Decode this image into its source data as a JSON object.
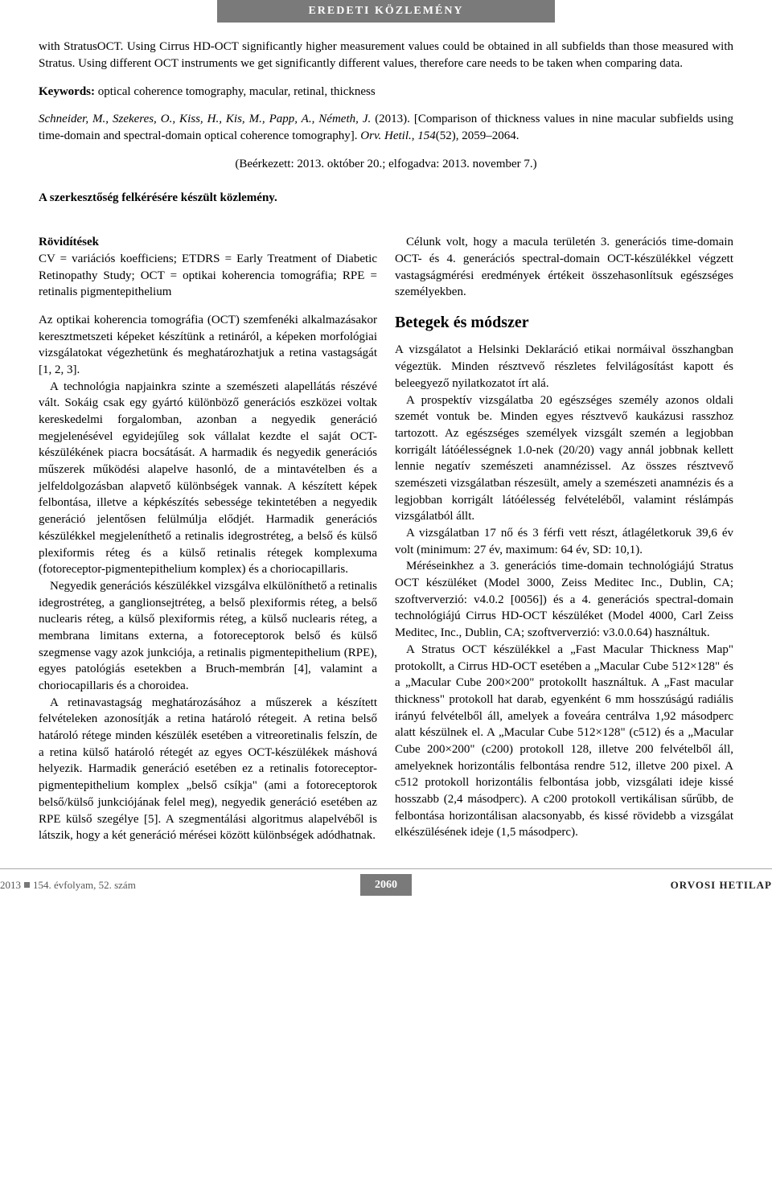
{
  "header": {
    "banner": "EREDETI KÖZLEMÉNY"
  },
  "abstract": {
    "text": "with StratusOCT. Using Cirrus HD-OCT significantly higher measurement values could be obtained in all subfields than those measured with Stratus. Using different OCT instruments we get significantly different values, therefore care needs to be taken when comparing data."
  },
  "keywords": {
    "label": "Keywords:",
    "text": " optical coherence tomography, macular, retinal, thickness"
  },
  "citation": {
    "authors": "Schneider, M., Szekeres, O., Kiss, H., Kis, M., Papp, A., Németh, J.",
    "year": " (2013). ",
    "title": "[Comparison of thickness values in nine macular subfields using time-domain and spectral-domain optical coherence tomography]. ",
    "journal": "Orv. Hetil., 154",
    "pages": "(52), 2059–2064."
  },
  "received": "(Beérkezett: 2013. október 20.; elfogadva: 2013. november 7.)",
  "editorial": "A szerkesztőség felkérésére készült közlemény.",
  "abbrev": {
    "head": "Rövidítések",
    "text": "CV = variációs koefficiens; ETDRS = Early Treatment of Diabetic Retinopathy Study; OCT = optikai koherencia tomográfia; RPE = retinalis pigmentepithelium"
  },
  "body": {
    "p1": "Az optikai koherencia tomográfia (OCT) szemfenéki alkalmazásakor keresztmetszeti képeket készítünk a retináról, a képeken morfológiai vizsgálatokat végezhetünk és meghatározhatjuk a retina vastagságát [1, 2, 3].",
    "p2": "A technológia napjainkra szinte a szemészeti alapellátás részévé vált. Sokáig csak egy gyártó különböző generációs eszközei voltak kereskedelmi forgalomban, azonban a negyedik generáció megjelenésével egyidejűleg sok vállalat kezdte el saját OCT-készülékének piacra bocsátását. A harmadik és negyedik generációs műszerek működési alapelve hasonló, de a mintavételben és a jelfeldolgozásban alapvető különbségek vannak. A készített képek felbontása, illetve a képkészítés sebessége tekintetében a negyedik generáció jelentősen felülmúlja elődjét. Harmadik generációs készülékkel megjeleníthető a retinalis idegrostréteg, a belső és külső plexiformis réteg és a külső retinalis rétegek komplexuma (fotoreceptor-pigmentepithelium komplex) és a choriocapillaris.",
    "p3": "Negyedik generációs készülékkel vizsgálva elkülöníthető a retinalis idegrostréteg, a ganglionsejtréteg, a belső plexiformis réteg, a belső nuclearis réteg, a külső plexiformis réteg, a külső nuclearis réteg, a membrana limitans externa, a fotoreceptorok belső és külső szegmense vagy azok junkciója, a retinalis pigmentepithelium (RPE), egyes patológiás esetekben a Bruch-membrán [4], valamint a choriocapillaris és a choroidea.",
    "p4": "A retinavastagság meghatározásához a műszerek a készített felvételeken azonosítják a retina határoló rétegeit. A retina belső határoló rétege minden készülék esetében a vitreoretinalis felszín, de a retina külső határoló rétegét az egyes OCT-készülékek máshová helyezik. Harmadik generáció esetében ez a retinalis fotoreceptor-pigmentepithelium komplex „belső csíkja\" (ami a fotoreceptorok belső/külső junkciójának felel meg), negyedik generáció esetében az RPE külső szegélye [5]. A szegmentálási algoritmus alapelvéből is látszik, hogy a két generáció mérései között különbségek adódhatnak.",
    "p5": "Célunk volt, hogy a macula területén 3. generációs time-domain OCT- és 4. generációs spectral-domain OCT-készülékkel végzett vastagságmérési eredmények értékeit összehasonlítsuk egészséges személyekben.",
    "section": "Betegek és módszer",
    "p6": "A vizsgálatot a Helsinki Deklaráció etikai normáival összhangban végeztük. Minden résztvevő részletes felvilágosítást kapott és beleegyező nyilatkozatot írt alá.",
    "p7": "A prospektív vizsgálatba 20 egészséges személy azonos oldali szemét vontuk be. Minden egyes résztvevő kaukázusi rasszhoz tartozott. Az egészséges személyek vizsgált szemén a legjobban korrigált látóélességnek 1.0-nek (20/20) vagy annál jobbnak kellett lennie negatív szemészeti anamnézissel. Az összes résztvevő szemészeti vizsgálatban részesült, amely a szemészeti anamnézis és a legjobban korrigált látóélesség felvételéből, valamint réslámpás vizsgálatból állt.",
    "p8": "A vizsgálatban 17 nő és 3 férfi vett részt, átlagéletkoruk 39,6 év volt (minimum: 27 év, maximum: 64 év, SD: 10,1).",
    "p9": "Méréseinkhez a 3. generációs time-domain technológiájú Stratus OCT készüléket (Model 3000, Zeiss Meditec Inc., Dublin, CA; szoftververzió: v4.0.2 [0056]) és a 4. generációs spectral-domain technológiájú Cirrus HD-OCT készüléket (Model 4000, Carl Zeiss Meditec, Inc., Dublin, CA; szoftververzió: v3.0.0.64) használtuk.",
    "p10": "A Stratus OCT készülékkel a „Fast Macular Thickness Map\" protokollt, a Cirrus HD-OCT esetében a „Macular Cube 512×128\" és a „Macular Cube 200×200\" protokollt használtuk. A „Fast macular thickness\" protokoll hat darab, egyenként 6 mm hosszúságú radiális irányú felvételből áll, amelyek a foveára centrálva 1,92 másodperc alatt készülnek el. A „Macular Cube 512×128\" (c512) és a „Macular Cube 200×200\" (c200) protokoll 128, illetve 200 felvételből áll, amelyeknek horizontális felbontása rendre 512, illetve 200 pixel. A c512 protokoll horizontális felbontása jobb, vizsgálati ideje kissé hosszabb (2,4 másodperc). A c200 protokoll vertikálisan sűrűbb, de felbontása horizontálisan alacsonyabb, és kissé rövidebb a vizsgálat elkészülésének ideje (1,5 másodperc)."
  },
  "footer": {
    "left_year": "2013",
    "left_issue": "154. évfolyam, 52. szám",
    "page": "2060",
    "right": "ORVOSI HETILAP"
  }
}
